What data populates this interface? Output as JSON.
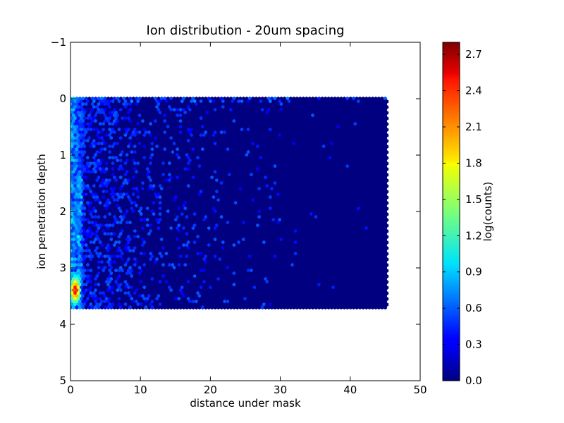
{
  "chart_data": {
    "type": "heatmap",
    "subtype": "hexbin",
    "title": "Ion distribution - 20um spacing",
    "xlabel": "distance under mask",
    "ylabel": "ion penetration depth",
    "xlim": [
      0,
      50
    ],
    "ylim": [
      -1,
      5
    ],
    "y_inverted": true,
    "x_ticks": [
      "0",
      "10",
      "20",
      "30",
      "40",
      "50"
    ],
    "y_ticks": [
      "−1",
      "0",
      "1",
      "2",
      "3",
      "4",
      "5"
    ],
    "data_extent": {
      "x": [
        0,
        45.3
      ],
      "y": [
        0,
        3.7
      ]
    },
    "colorscale": "jet",
    "colorbar": {
      "label": "log(counts)",
      "range": [
        0,
        2.8
      ],
      "ticks": [
        "0.0",
        "0.3",
        "0.6",
        "0.9",
        "1.2",
        "1.5",
        "1.8",
        "2.1",
        "2.4",
        "2.7"
      ],
      "tick_values": [
        0,
        0.3,
        0.6,
        0.9,
        1.2,
        1.5,
        1.8,
        2.1,
        2.4,
        2.7
      ]
    },
    "density_features": {
      "background_value": 0.0,
      "near_edge_band": {
        "x_max": 2.0,
        "typical_value": 0.8
      },
      "hotspot": {
        "x": [
          0.2,
          1.2
        ],
        "y": [
          3.3,
          3.5
        ],
        "peak_value": 2.75
      },
      "surface_row": {
        "y": 0.05,
        "typical_value": 0.6
      }
    }
  }
}
